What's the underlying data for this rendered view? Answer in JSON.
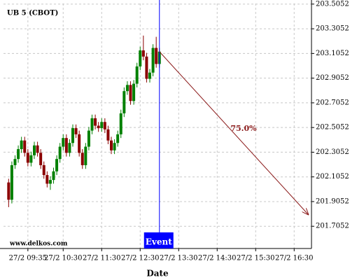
{
  "chart_data": {
    "type": "candlestick",
    "title": "UB 5 (CBOT)",
    "watermark": "www.delkos.com",
    "xlabel": "Date",
    "x": [
      545,
      550,
      555,
      560,
      565,
      570,
      575,
      580,
      585,
      590,
      595,
      600,
      605,
      610,
      615,
      620,
      625,
      630,
      635,
      640,
      645,
      650,
      655,
      660,
      665,
      670,
      675,
      680,
      685,
      690,
      695,
      700,
      705,
      710,
      715,
      720,
      725,
      730,
      735,
      740,
      745,
      750,
      755,
      760,
      765,
      770,
      775,
      780
    ],
    "open": [
      202.06,
      201.92,
      202.2,
      202.25,
      202.33,
      202.4,
      202.3,
      202.22,
      202.28,
      202.36,
      202.3,
      202.2,
      202.12,
      202.05,
      202.08,
      202.15,
      202.25,
      202.35,
      202.42,
      202.3,
      202.38,
      202.5,
      202.45,
      202.3,
      202.2,
      202.35,
      202.48,
      202.58,
      202.52,
      202.5,
      202.55,
      202.49,
      202.4,
      202.32,
      202.38,
      202.45,
      202.62,
      202.8,
      202.85,
      202.72,
      202.86,
      203.0,
      203.13,
      203.08,
      202.9,
      202.95,
      203.15,
      203.02
    ],
    "high": [
      202.09,
      202.23,
      202.28,
      202.36,
      202.43,
      202.43,
      202.33,
      202.31,
      202.39,
      202.39,
      202.33,
      202.23,
      202.15,
      202.11,
      202.18,
      202.28,
      202.38,
      202.45,
      202.45,
      202.41,
      202.53,
      202.53,
      202.48,
      202.33,
      202.38,
      202.51,
      202.61,
      202.61,
      202.55,
      202.58,
      202.58,
      202.52,
      202.43,
      202.41,
      202.48,
      202.65,
      202.83,
      202.88,
      202.88,
      202.89,
      203.03,
      203.16,
      203.25,
      203.11,
      202.98,
      203.18,
      203.24,
      203.15
    ],
    "low": [
      201.86,
      201.89,
      202.17,
      202.22,
      202.3,
      202.27,
      202.19,
      202.19,
      202.25,
      202.27,
      202.17,
      202.09,
      202.02,
      202.0,
      202.05,
      202.12,
      202.22,
      202.32,
      202.27,
      202.27,
      202.35,
      202.42,
      202.27,
      202.17,
      202.17,
      202.32,
      202.45,
      202.49,
      202.47,
      202.47,
      202.46,
      202.37,
      202.29,
      202.29,
      202.35,
      202.42,
      202.59,
      202.77,
      202.69,
      202.69,
      202.83,
      202.97,
      203.05,
      202.87,
      202.87,
      202.92,
      202.99,
      202.99
    ],
    "close": [
      201.92,
      202.2,
      202.25,
      202.33,
      202.4,
      202.3,
      202.22,
      202.28,
      202.36,
      202.3,
      202.2,
      202.12,
      202.05,
      202.08,
      202.15,
      202.25,
      202.35,
      202.42,
      202.3,
      202.38,
      202.5,
      202.45,
      202.3,
      202.2,
      202.35,
      202.48,
      202.58,
      202.52,
      202.5,
      202.55,
      202.49,
      202.4,
      202.32,
      202.38,
      202.45,
      202.62,
      202.8,
      202.85,
      202.72,
      202.86,
      203.0,
      203.13,
      203.08,
      202.9,
      202.95,
      203.15,
      203.02,
      203.12
    ],
    "up_color": "#008000",
    "down_color": "#8b0000",
    "event": {
      "x": 780,
      "label": "Event",
      "color": "#0000ff"
    },
    "projection": {
      "x": [
        780,
        1012
      ],
      "y": [
        203.12,
        201.8
      ],
      "label": "75.0%",
      "color": "#8b1a1a"
    },
    "xlim": [
      537,
      1017
    ],
    "ylim": [
      201.525,
      203.51
    ],
    "xticks": [
      {
        "value": 575,
        "label": "27/2 09:35"
      },
      {
        "value": 630,
        "label": "27/2 10:30"
      },
      {
        "value": 690,
        "label": "27/2 11:30"
      },
      {
        "value": 750,
        "label": "27/2 12:30"
      },
      {
        "value": 810,
        "label": "27/2 13:30"
      },
      {
        "value": 870,
        "label": "27/2 14:30"
      },
      {
        "value": 930,
        "label": "27/2 15:30"
      },
      {
        "value": 990,
        "label": "27/2 16:30"
      }
    ],
    "yticks": [
      201.7052,
      201.9052,
      202.1052,
      202.3052,
      202.5052,
      202.7052,
      202.9052,
      203.1052,
      203.3052,
      203.5052
    ],
    "grid": true
  }
}
